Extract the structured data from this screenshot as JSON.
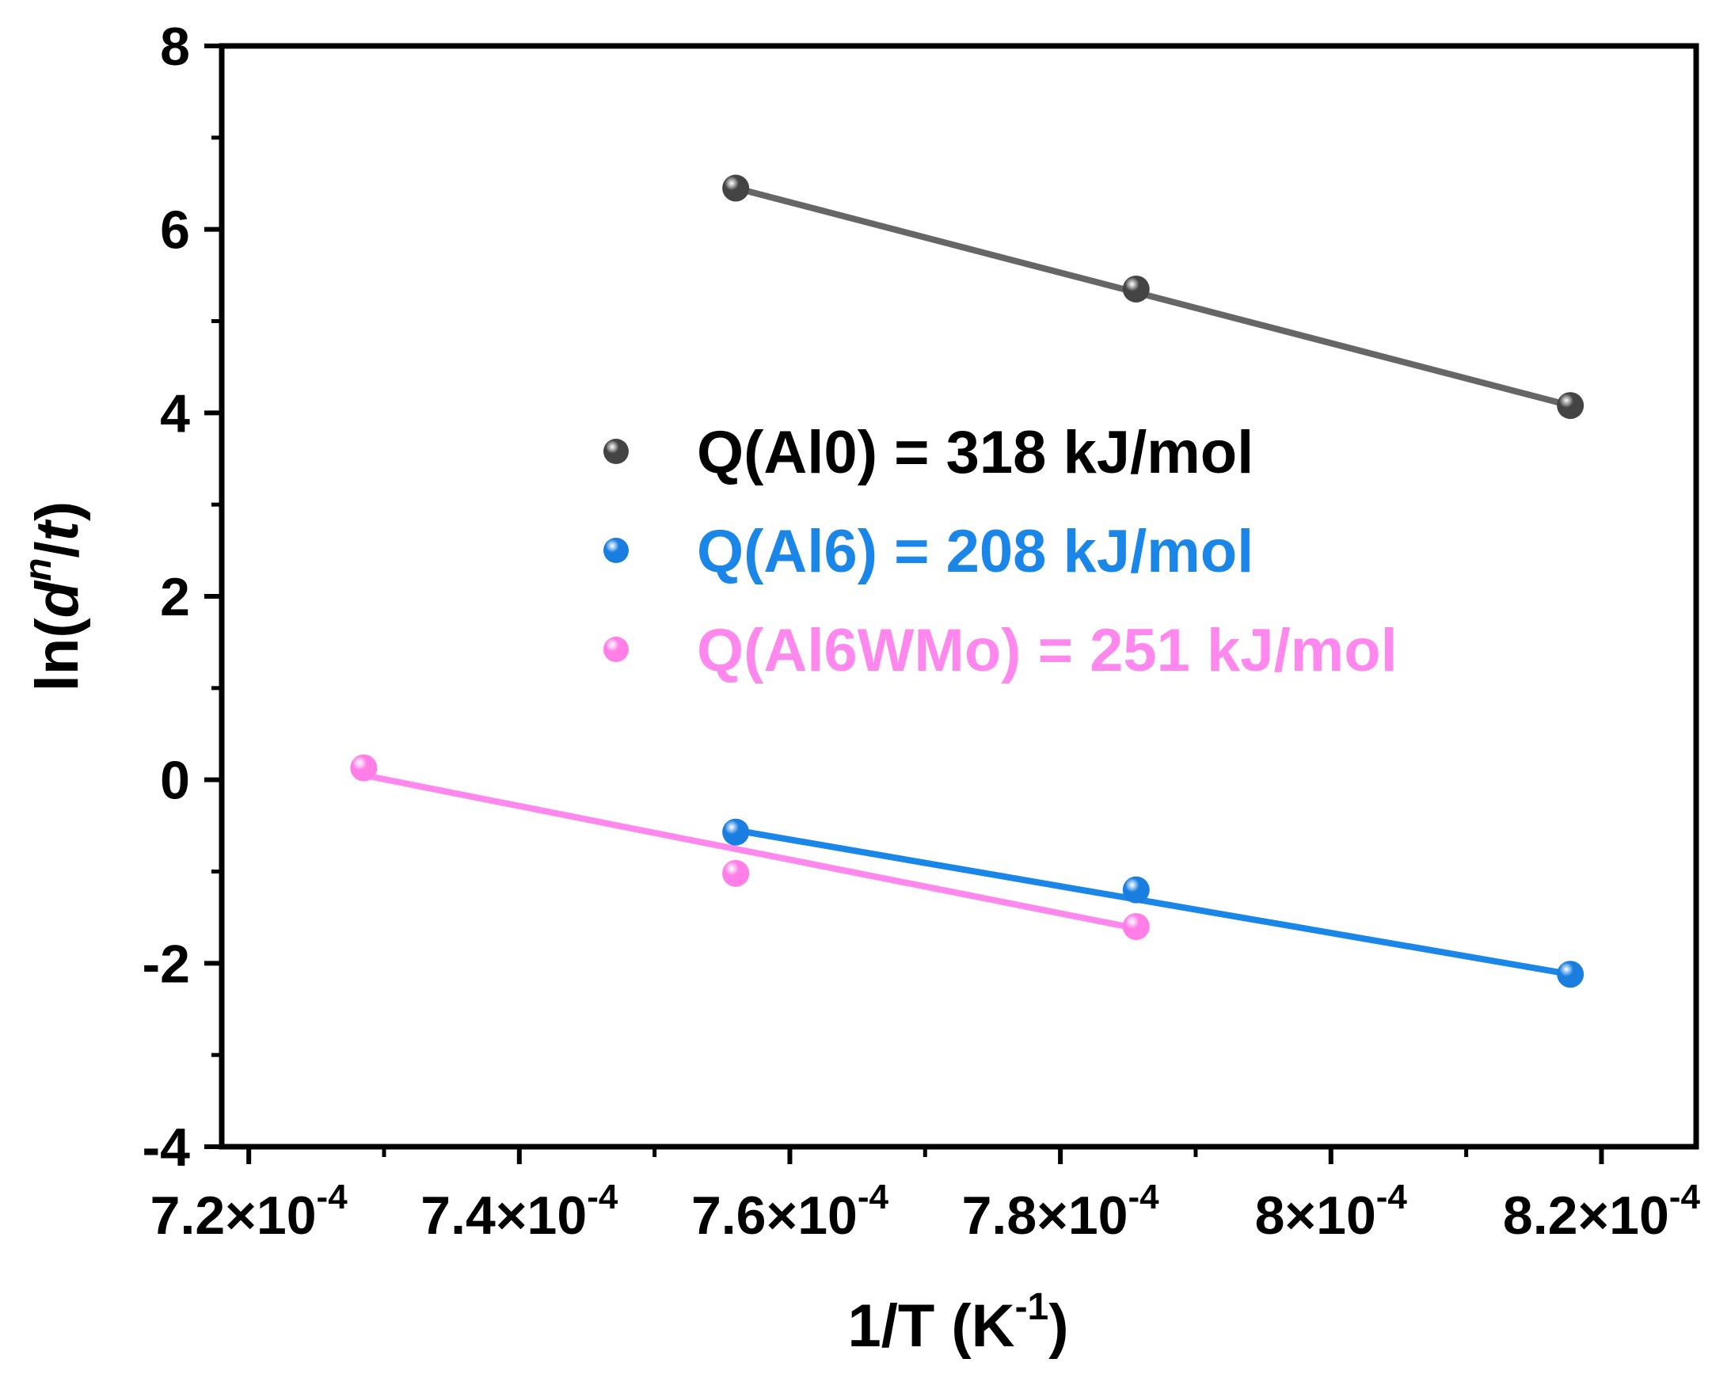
{
  "chart_data": {
    "type": "scatter",
    "title": "",
    "xlabel": {
      "main": "1/T (K",
      "sup": "-1",
      "end": ")"
    },
    "ylabel": {
      "pre": "ln(",
      "d": "d",
      "sup": "n",
      "slash": "/",
      "t": "t",
      "end": ")"
    },
    "xlim": [
      0.000718,
      0.000827
    ],
    "ylim": [
      -4,
      8
    ],
    "x_ticks": [
      {
        "value": 0.00072,
        "mantissa": "7.2",
        "times": "×10",
        "exp": "-4"
      },
      {
        "value": 0.00074,
        "mantissa": "7.4",
        "times": "×10",
        "exp": "-4"
      },
      {
        "value": 0.00076,
        "mantissa": "7.6",
        "times": "×10",
        "exp": "-4"
      },
      {
        "value": 0.00078,
        "mantissa": "7.8",
        "times": "×10",
        "exp": "-4"
      },
      {
        "value": 0.0008,
        "mantissa": "8",
        "times": "×10",
        "exp": "-4"
      },
      {
        "value": 0.00082,
        "mantissa": "8.2",
        "times": "×10",
        "exp": "-4"
      }
    ],
    "y_ticks": [
      {
        "value": -4,
        "label": "-4"
      },
      {
        "value": -2,
        "label": "-2"
      },
      {
        "value": 0,
        "label": "0"
      },
      {
        "value": 2,
        "label": "2"
      },
      {
        "value": 4,
        "label": "4"
      },
      {
        "value": 6,
        "label": "6"
      },
      {
        "value": 8,
        "label": "8"
      }
    ],
    "series": [
      {
        "name": "Al0",
        "legend": "Q(Al0) = 318 kJ/mol",
        "color": "#666666",
        "dot_color": "#444444",
        "points": [
          {
            "x": 0.000756,
            "y": 6.45
          },
          {
            "x": 0.0007856,
            "y": 5.35
          },
          {
            "x": 0.0008177,
            "y": 4.08
          }
        ],
        "fit": [
          {
            "x": 0.000756,
            "y": 6.45
          },
          {
            "x": 0.0008177,
            "y": 4.08
          }
        ]
      },
      {
        "name": "Al6",
        "legend": "Q(Al6) = 208 kJ/mol",
        "color": "#1a86e8",
        "dot_color": "#1a7ee0",
        "points": [
          {
            "x": 0.000756,
            "y": -0.57
          },
          {
            "x": 0.0007856,
            "y": -1.2
          },
          {
            "x": 0.0008177,
            "y": -2.12
          }
        ],
        "fit": [
          {
            "x": 0.000756,
            "y": -0.55
          },
          {
            "x": 0.0008177,
            "y": -2.12
          }
        ]
      },
      {
        "name": "Al6WMo",
        "legend": "Q(Al6WMo) = 251 kJ/mol",
        "color": "#ff88ee",
        "dot_color": "#ff7ee8",
        "points": [
          {
            "x": 0.0007285,
            "y": 0.13
          },
          {
            "x": 0.000756,
            "y": -1.02
          },
          {
            "x": 0.0007856,
            "y": -1.6
          }
        ],
        "fit": [
          {
            "x": 0.0007285,
            "y": 0.05
          },
          {
            "x": 0.0007856,
            "y": -1.62
          }
        ]
      }
    ],
    "legend_position": "center-right"
  }
}
